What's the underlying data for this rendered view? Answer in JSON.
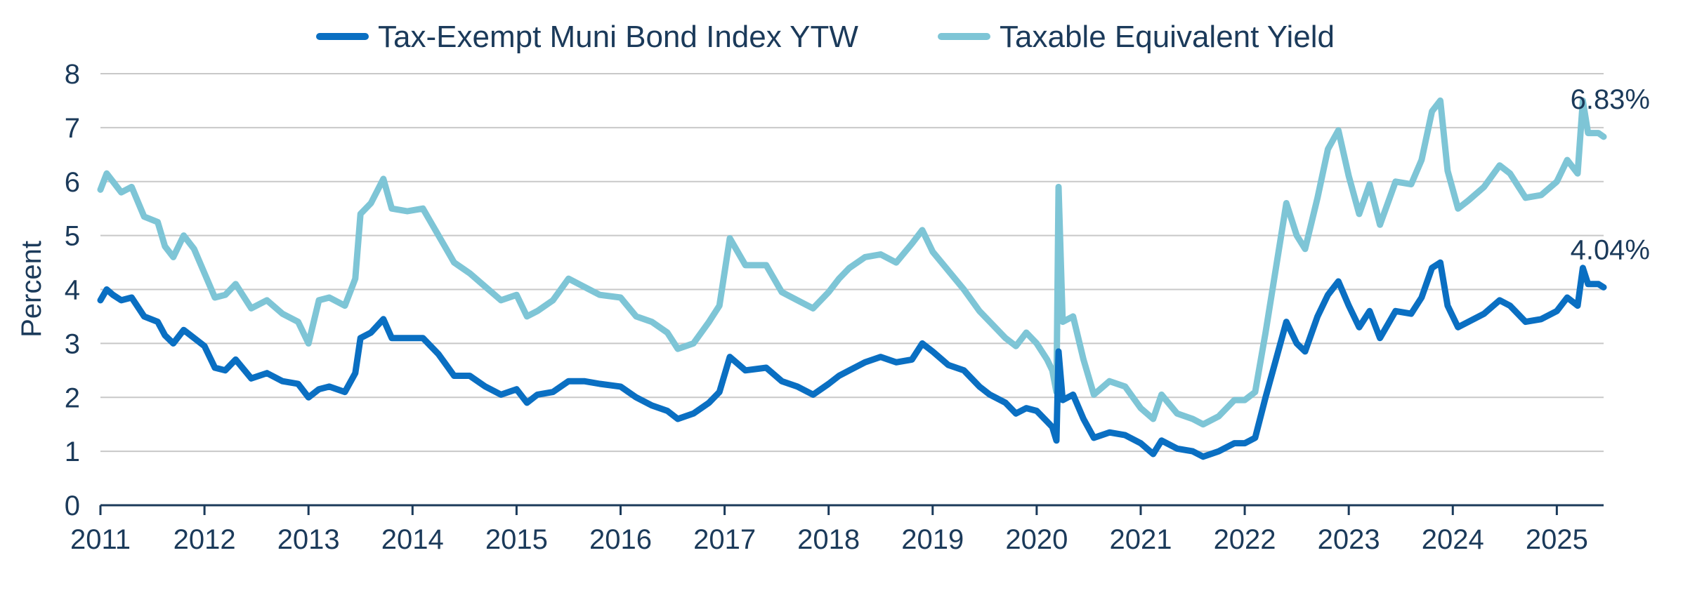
{
  "chart_data": {
    "type": "line",
    "title": "",
    "ylabel": "Percent",
    "xlabel": "",
    "ylim": [
      0,
      8
    ],
    "xlim": [
      2011,
      2025.45
    ],
    "yticks": [
      "0",
      "1",
      "2",
      "3",
      "4",
      "5",
      "6",
      "7",
      "8"
    ],
    "xticks": [
      "2011",
      "2012",
      "2013",
      "2014",
      "2015",
      "2016",
      "2017",
      "2018",
      "2019",
      "2020",
      "2021",
      "2022",
      "2023",
      "2024",
      "2025"
    ],
    "grid": true,
    "legend_position": "top",
    "series": [
      {
        "name": "Tax-Exempt Muni Bond Index YTW",
        "color": "#0a6fc2",
        "end_label": "4.04%",
        "x": [
          2011.0,
          2011.06,
          2011.12,
          2011.2,
          2011.3,
          2011.42,
          2011.55,
          2011.62,
          2011.7,
          2011.8,
          2011.9,
          2012.0,
          2012.1,
          2012.2,
          2012.3,
          2012.45,
          2012.6,
          2012.75,
          2012.9,
          2013.0,
          2013.1,
          2013.2,
          2013.35,
          2013.45,
          2013.5,
          2013.6,
          2013.72,
          2013.8,
          2013.95,
          2014.1,
          2014.25,
          2014.4,
          2014.55,
          2014.7,
          2014.85,
          2015.0,
          2015.1,
          2015.2,
          2015.35,
          2015.5,
          2015.65,
          2015.8,
          2016.0,
          2016.15,
          2016.3,
          2016.45,
          2016.55,
          2016.7,
          2016.85,
          2016.95,
          2017.05,
          2017.2,
          2017.4,
          2017.55,
          2017.7,
          2017.85,
          2018.0,
          2018.1,
          2018.2,
          2018.35,
          2018.5,
          2018.65,
          2018.8,
          2018.9,
          2019.0,
          2019.15,
          2019.3,
          2019.45,
          2019.55,
          2019.7,
          2019.8,
          2019.9,
          2020.0,
          2020.1,
          2020.15,
          2020.19,
          2020.21,
          2020.25,
          2020.35,
          2020.45,
          2020.55,
          2020.7,
          2020.85,
          2021.0,
          2021.12,
          2021.2,
          2021.35,
          2021.5,
          2021.6,
          2021.75,
          2021.9,
          2022.0,
          2022.1,
          2022.2,
          2022.3,
          2022.4,
          2022.5,
          2022.58,
          2022.7,
          2022.8,
          2022.9,
          2023.0,
          2023.1,
          2023.2,
          2023.3,
          2023.45,
          2023.6,
          2023.7,
          2023.8,
          2023.88,
          2023.95,
          2024.05,
          2024.15,
          2024.3,
          2024.45,
          2024.55,
          2024.7,
          2024.85,
          2025.0,
          2025.1,
          2025.2,
          2025.25,
          2025.3,
          2025.4,
          2025.45
        ],
        "y": [
          3.8,
          4.0,
          3.9,
          3.8,
          3.85,
          3.5,
          3.4,
          3.15,
          3.0,
          3.25,
          3.1,
          2.95,
          2.55,
          2.5,
          2.7,
          2.35,
          2.45,
          2.3,
          2.25,
          2.0,
          2.15,
          2.2,
          2.1,
          2.45,
          3.1,
          3.2,
          3.45,
          3.1,
          3.1,
          3.1,
          2.8,
          2.4,
          2.4,
          2.2,
          2.05,
          2.15,
          1.9,
          2.05,
          2.1,
          2.3,
          2.3,
          2.25,
          2.2,
          2.0,
          1.85,
          1.75,
          1.6,
          1.7,
          1.9,
          2.1,
          2.75,
          2.5,
          2.55,
          2.3,
          2.2,
          2.05,
          2.25,
          2.4,
          2.5,
          2.65,
          2.75,
          2.65,
          2.7,
          3.0,
          2.85,
          2.6,
          2.5,
          2.2,
          2.05,
          1.9,
          1.7,
          1.8,
          1.75,
          1.55,
          1.45,
          1.2,
          2.85,
          1.95,
          2.05,
          1.6,
          1.25,
          1.35,
          1.3,
          1.15,
          0.95,
          1.2,
          1.05,
          1.0,
          0.9,
          1.0,
          1.15,
          1.15,
          1.25,
          2.0,
          2.7,
          3.4,
          3.0,
          2.85,
          3.5,
          3.9,
          4.15,
          3.7,
          3.3,
          3.6,
          3.1,
          3.6,
          3.55,
          3.85,
          4.4,
          4.5,
          3.7,
          3.3,
          3.4,
          3.55,
          3.8,
          3.7,
          3.4,
          3.45,
          3.6,
          3.85,
          3.7,
          4.4,
          4.1,
          4.1,
          4.04
        ]
      },
      {
        "name": "Taxable Equivalent Yield",
        "color": "#7ec5d6",
        "end_label": "6.83%",
        "x": [
          2011.0,
          2011.06,
          2011.12,
          2011.2,
          2011.3,
          2011.42,
          2011.55,
          2011.62,
          2011.7,
          2011.8,
          2011.9,
          2012.0,
          2012.1,
          2012.2,
          2012.3,
          2012.45,
          2012.6,
          2012.75,
          2012.9,
          2013.0,
          2013.1,
          2013.2,
          2013.35,
          2013.45,
          2013.5,
          2013.6,
          2013.72,
          2013.8,
          2013.95,
          2014.1,
          2014.25,
          2014.4,
          2014.55,
          2014.7,
          2014.85,
          2015.0,
          2015.1,
          2015.2,
          2015.35,
          2015.5,
          2015.65,
          2015.8,
          2016.0,
          2016.15,
          2016.3,
          2016.45,
          2016.55,
          2016.7,
          2016.85,
          2016.95,
          2017.05,
          2017.2,
          2017.4,
          2017.55,
          2017.7,
          2017.85,
          2018.0,
          2018.1,
          2018.2,
          2018.35,
          2018.5,
          2018.65,
          2018.8,
          2018.9,
          2019.0,
          2019.15,
          2019.3,
          2019.45,
          2019.55,
          2019.7,
          2019.8,
          2019.9,
          2020.0,
          2020.1,
          2020.15,
          2020.19,
          2020.21,
          2020.25,
          2020.35,
          2020.45,
          2020.55,
          2020.7,
          2020.85,
          2021.0,
          2021.12,
          2021.2,
          2021.35,
          2021.5,
          2021.6,
          2021.75,
          2021.9,
          2022.0,
          2022.1,
          2022.2,
          2022.3,
          2022.4,
          2022.5,
          2022.58,
          2022.7,
          2022.8,
          2022.9,
          2023.0,
          2023.1,
          2023.2,
          2023.3,
          2023.45,
          2023.6,
          2023.7,
          2023.8,
          2023.88,
          2023.95,
          2024.05,
          2024.15,
          2024.3,
          2024.45,
          2024.55,
          2024.7,
          2024.85,
          2025.0,
          2025.1,
          2025.2,
          2025.25,
          2025.3,
          2025.4,
          2025.45
        ],
        "y": [
          5.85,
          6.15,
          6.0,
          5.8,
          5.9,
          5.35,
          5.25,
          4.8,
          4.6,
          5.0,
          4.75,
          4.3,
          3.85,
          3.9,
          4.1,
          3.65,
          3.8,
          3.55,
          3.4,
          3.0,
          3.8,
          3.85,
          3.7,
          4.2,
          5.4,
          5.6,
          6.05,
          5.5,
          5.45,
          5.5,
          5.0,
          4.5,
          4.3,
          4.05,
          3.8,
          3.9,
          3.5,
          3.6,
          3.8,
          4.2,
          4.05,
          3.9,
          3.85,
          3.5,
          3.4,
          3.2,
          2.9,
          3.0,
          3.4,
          3.7,
          4.95,
          4.45,
          4.45,
          3.95,
          3.8,
          3.65,
          3.95,
          4.2,
          4.4,
          4.6,
          4.65,
          4.5,
          4.85,
          5.1,
          4.7,
          4.35,
          4.0,
          3.6,
          3.4,
          3.1,
          2.95,
          3.2,
          3.0,
          2.7,
          2.5,
          2.1,
          5.9,
          3.4,
          3.5,
          2.7,
          2.05,
          2.3,
          2.2,
          1.8,
          1.6,
          2.05,
          1.7,
          1.6,
          1.5,
          1.65,
          1.95,
          1.95,
          2.1,
          3.2,
          4.4,
          5.6,
          5.0,
          4.75,
          5.7,
          6.6,
          6.95,
          6.1,
          5.4,
          5.95,
          5.2,
          6.0,
          5.95,
          6.4,
          7.3,
          7.5,
          6.2,
          5.5,
          5.65,
          5.9,
          6.3,
          6.15,
          5.7,
          5.75,
          6.0,
          6.4,
          6.15,
          7.5,
          6.9,
          6.9,
          6.83
        ]
      }
    ]
  }
}
